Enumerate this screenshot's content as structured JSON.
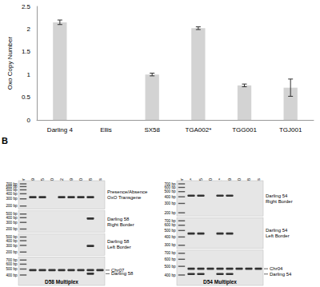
{
  "chart_data": {
    "type": "bar",
    "categories": [
      "Darling 4",
      "Ellis",
      "SX58",
      "TGA002*",
      "TGG001",
      "TGJ001"
    ],
    "values": [
      2.15,
      0,
      1.0,
      2.02,
      0.76,
      0.71
    ],
    "errors": [
      0.05,
      0,
      0.03,
      0.03,
      0.03,
      0.19
    ],
    "color": "#d3d3d3",
    "y_label": "Oxo Copy Number",
    "ylim": [
      0,
      2.5
    ],
    "yticks": [
      0,
      0.5,
      1,
      1.5,
      2,
      2.5
    ],
    "grid": false
  },
  "panel_b": {
    "label": "B",
    "gels": [
      {
        "lanes": [
          "DNA Ladder",
          "ULL009",
          "ULL005",
          "ULL010",
          "TGG002",
          "TGG009",
          "TGG010",
          "SX58",
          "Ellis"
        ],
        "rows": [
          {
            "label": "Presence/Absence OxO Transgene",
            "ladder": [
              {
                "value": 700,
                "label": "700 bp"
              },
              {
                "value": 600,
                "label": "600 bp"
              },
              {
                "value": 500,
                "label": "500 bp"
              },
              {
                "value": 400,
                "label": "400 bp"
              },
              {
                "value": 300,
                "label": "300 bp"
              },
              {
                "value": 200,
                "label": "200 bp"
              }
            ],
            "bands": [
              [
                330
              ],
              [
                330
              ],
              [],
              [
                330
              ],
              [
                330
              ],
              [
                330
              ],
              [
                330
              ],
              []
            ]
          },
          {
            "label": "Darling 58 Right Border",
            "ladder": [
              {
                "value": 500,
                "label": "500 bp"
              },
              {
                "value": 400,
                "label": "400 bp"
              },
              {
                "value": 300,
                "label": "300 bp"
              },
              {
                "value": 200,
                "label": "200 bp"
              }
            ],
            "bands": [
              [],
              [],
              [],
              [],
              [],
              [],
              [
                380
              ],
              []
            ]
          },
          {
            "label": "Darling 58 Left Border",
            "ladder": [
              {
                "value": 500,
                "label": "500 bp"
              },
              {
                "value": 400,
                "label": "400 bp"
              },
              {
                "value": 300,
                "label": "300 bp"
              },
              {
                "value": 200,
                "label": "200 bp"
              }
            ],
            "bands": [
              [],
              [],
              [],
              [],
              [],
              [],
              [
                290
              ],
              []
            ]
          },
          {
            "title": "D58 Multiplex",
            "ladder": [
              {
                "value": 700,
                "label": "700 bp"
              },
              {
                "value": 600,
                "label": "600 bp"
              },
              {
                "value": 500,
                "label": "500 bp"
              },
              {
                "value": 400,
                "label": "400 bp"
              }
            ],
            "bands": [
              [
                480
              ],
              [
                480
              ],
              [
                480
              ],
              [
                480
              ],
              [
                480
              ],
              [
                480
              ],
              [
                480,
                420
              ],
              [
                480
              ]
            ],
            "markers": [
              {
                "label": "Chr07",
                "bp": 480
              },
              {
                "label": "Darling 58",
                "bp": 420
              }
            ]
          }
        ]
      },
      {
        "lanes": [
          "DNA Ladder",
          "ULL009*",
          "ULL005",
          "ULL010",
          "TGG002*",
          "TGG009",
          "TGG010",
          "SX58",
          "Ellis"
        ],
        "rows": [
          {
            "label": "Darling 54 Right Border",
            "ladder": [
              {
                "value": 700,
                "label": "700 bp"
              },
              {
                "value": 600,
                "label": "600 bp"
              },
              {
                "value": 500,
                "label": "500 bp"
              },
              {
                "value": 400,
                "label": "400 bp"
              },
              {
                "value": 300,
                "label": "300 bp"
              },
              {
                "value": 200,
                "label": "200 bp"
              }
            ],
            "bands": [
              [
                420
              ],
              [
                420
              ],
              [],
              [
                420
              ],
              [
                420
              ],
              [],
              [],
              []
            ]
          },
          {
            "label": "Darling 54 Left Border",
            "ladder": [
              {
                "value": 700,
                "label": "700 bp"
              },
              {
                "value": 600,
                "label": "600 bp"
              },
              {
                "value": 500,
                "label": "500 bp"
              },
              {
                "value": 400,
                "label": "400 bp"
              },
              {
                "value": 300,
                "label": "300 bp"
              }
            ],
            "bands": [
              [
                450
              ],
              [
                450
              ],
              [],
              [
                450
              ],
              [
                450
              ],
              [],
              [],
              []
            ]
          },
          {
            "title": "D54 Multiplex",
            "ladder": [
              {
                "value": 700,
                "label": "700 bp"
              },
              {
                "value": 600,
                "label": "600 bp"
              },
              {
                "value": 500,
                "label": "500 bp"
              },
              {
                "value": 400,
                "label": "400 bp"
              }
            ],
            "bands": [
              [
                470,
                410
              ],
              [
                470,
                410
              ],
              [
                470
              ],
              [
                470,
                410
              ],
              [
                470,
                410
              ],
              [
                470
              ],
              [
                470
              ],
              [
                470
              ]
            ],
            "markers": [
              {
                "label": "Chr04",
                "bp": 470
              },
              {
                "label": "Darling 54",
                "bp": 410
              }
            ]
          }
        ]
      }
    ]
  }
}
